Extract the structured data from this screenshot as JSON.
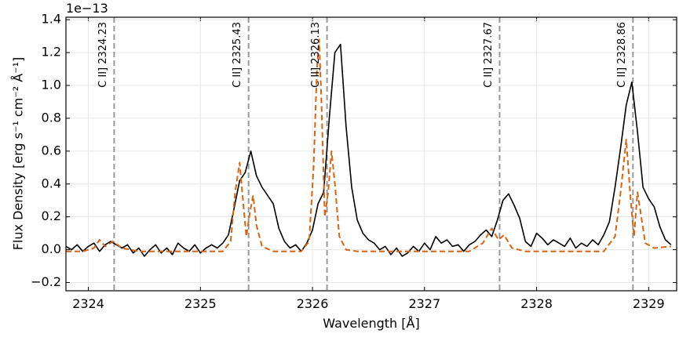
{
  "chart_data": {
    "type": "line",
    "x_label": "Wavelength [Å]",
    "y_label": "Flux Density [erg s⁻¹ cm⁻² Å⁻¹]",
    "y_offset_label": "1e−13",
    "xlim": [
      2323.8,
      2329.25
    ],
    "ylim": [
      -0.25,
      1.415
    ],
    "xticks": [
      2324,
      2325,
      2326,
      2327,
      2328,
      2329
    ],
    "yticks": [
      {
        "value": -0.2,
        "label": "−0.2"
      },
      {
        "value": 0.0,
        "label": "0.0"
      },
      {
        "value": 0.2,
        "label": "0.2"
      },
      {
        "value": 0.4,
        "label": "0.4"
      },
      {
        "value": 0.6,
        "label": "0.6"
      },
      {
        "value": 0.8,
        "label": "0.8"
      },
      {
        "value": 1.0,
        "label": "1.0"
      },
      {
        "value": 1.2,
        "label": "1.2"
      },
      {
        "value": 1.4,
        "label": "1.4"
      }
    ],
    "grid": true,
    "series": [
      {
        "color": "#000000",
        "dash": false,
        "x": [
          2323.8,
          2323.85,
          2323.9,
          2323.95,
          2324.0,
          2324.05,
          2324.1,
          2324.15,
          2324.2,
          2324.25,
          2324.3,
          2324.35,
          2324.4,
          2324.45,
          2324.5,
          2324.55,
          2324.6,
          2324.65,
          2324.7,
          2324.75,
          2324.8,
          2324.85,
          2324.9,
          2324.95,
          2325.0,
          2325.05,
          2325.1,
          2325.15,
          2325.2,
          2325.25,
          2325.3,
          2325.35,
          2325.4,
          2325.45,
          2325.5,
          2325.55,
          2325.6,
          2325.65,
          2325.7,
          2325.75,
          2325.8,
          2325.85,
          2325.9,
          2325.95,
          2326.0,
          2326.05,
          2326.1,
          2326.15,
          2326.2,
          2326.25,
          2326.3,
          2326.35,
          2326.4,
          2326.45,
          2326.5,
          2326.55,
          2326.6,
          2326.65,
          2326.7,
          2326.75,
          2326.8,
          2326.85,
          2326.9,
          2326.95,
          2327.0,
          2327.05,
          2327.1,
          2327.15,
          2327.2,
          2327.25,
          2327.3,
          2327.35,
          2327.4,
          2327.45,
          2327.5,
          2327.55,
          2327.6,
          2327.65,
          2327.7,
          2327.75,
          2327.8,
          2327.85,
          2327.9,
          2327.95,
          2328.0,
          2328.05,
          2328.1,
          2328.15,
          2328.2,
          2328.25,
          2328.3,
          2328.35,
          2328.4,
          2328.45,
          2328.5,
          2328.55,
          2328.6,
          2328.65,
          2328.7,
          2328.75,
          2328.8,
          2328.85,
          2328.9,
          2328.95,
          2329.0,
          2329.05,
          2329.1,
          2329.15,
          2329.2
        ],
        "values": [
          0.02,
          0.0,
          0.03,
          -0.01,
          0.02,
          0.04,
          -0.01,
          0.03,
          0.05,
          0.03,
          0.01,
          0.03,
          -0.02,
          0.01,
          -0.04,
          0.0,
          0.03,
          -0.02,
          0.01,
          -0.03,
          0.04,
          0.01,
          -0.01,
          0.03,
          -0.02,
          0.01,
          0.03,
          0.01,
          0.04,
          0.09,
          0.25,
          0.42,
          0.47,
          0.6,
          0.45,
          0.38,
          0.33,
          0.28,
          0.13,
          0.05,
          0.01,
          0.03,
          -0.01,
          0.04,
          0.12,
          0.28,
          0.35,
          0.8,
          1.2,
          1.25,
          0.75,
          0.38,
          0.18,
          0.1,
          0.06,
          0.04,
          0.0,
          0.02,
          -0.03,
          0.01,
          -0.04,
          -0.02,
          0.02,
          -0.01,
          0.04,
          0.0,
          0.08,
          0.04,
          0.06,
          0.02,
          0.03,
          -0.01,
          0.03,
          0.05,
          0.09,
          0.12,
          0.08,
          0.18,
          0.3,
          0.34,
          0.27,
          0.19,
          0.05,
          0.02,
          0.1,
          0.07,
          0.03,
          0.06,
          0.04,
          0.02,
          0.07,
          0.01,
          0.04,
          0.02,
          0.06,
          0.03,
          0.09,
          0.17,
          0.38,
          0.62,
          0.88,
          1.02,
          0.72,
          0.38,
          0.31,
          0.26,
          0.14,
          0.06,
          0.03
        ]
      },
      {
        "color": "#d9640f",
        "dash": true,
        "x": [
          2323.8,
          2323.95,
          2324.05,
          2324.1,
          2324.15,
          2324.22,
          2324.3,
          2324.45,
          2325.2,
          2325.27,
          2325.31,
          2325.35,
          2325.38,
          2325.41,
          2325.44,
          2325.47,
          2325.5,
          2325.55,
          2325.65,
          2325.9,
          2325.97,
          2326.01,
          2326.04,
          2326.06,
          2326.08,
          2326.11,
          2326.14,
          2326.17,
          2326.2,
          2326.24,
          2326.3,
          2326.4,
          2327.4,
          2327.52,
          2327.6,
          2327.66,
          2327.71,
          2327.78,
          2327.9,
          2328.6,
          2328.7,
          2328.75,
          2328.8,
          2328.84,
          2328.87,
          2328.9,
          2328.93,
          2328.97,
          2329.05,
          2329.2
        ],
        "values": [
          -0.01,
          -0.01,
          0.01,
          0.06,
          0.02,
          0.05,
          0.01,
          -0.01,
          -0.01,
          0.05,
          0.35,
          0.53,
          0.3,
          0.08,
          0.22,
          0.33,
          0.15,
          0.02,
          -0.01,
          -0.01,
          0.05,
          0.5,
          1.1,
          1.28,
          0.9,
          0.2,
          0.35,
          0.6,
          0.4,
          0.08,
          0.0,
          -0.01,
          -0.01,
          0.04,
          0.13,
          0.06,
          0.09,
          0.01,
          -0.01,
          -0.01,
          0.08,
          0.35,
          0.67,
          0.3,
          0.08,
          0.35,
          0.22,
          0.04,
          0.01,
          0.02
        ]
      }
    ],
    "vlines": [
      {
        "x": 2324.23,
        "label": "C II] 2324.23"
      },
      {
        "x": 2325.43,
        "label": "C II] 2325.43"
      },
      {
        "x": 2326.13,
        "label": "C II] 2326.13"
      },
      {
        "x": 2327.67,
        "label": "C II] 2327.67"
      },
      {
        "x": 2328.86,
        "label": "C II] 2328.86"
      }
    ]
  }
}
